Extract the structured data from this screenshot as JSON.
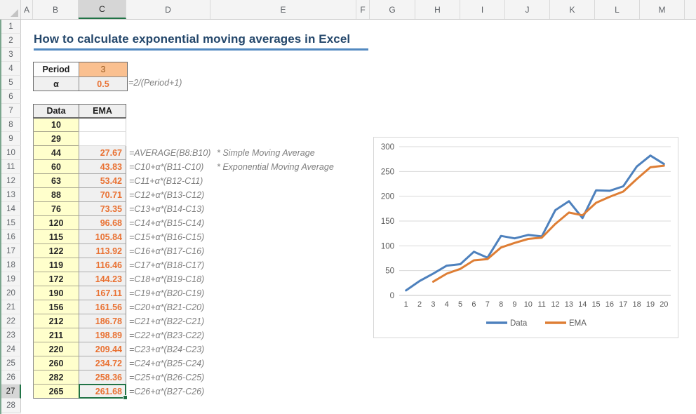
{
  "grid": {
    "column_headers": [
      "A",
      "B",
      "C",
      "D",
      "E",
      "F",
      "G",
      "H",
      "I",
      "J",
      "K",
      "L",
      "M"
    ],
    "row_count": 28,
    "selection": {
      "column": "C",
      "row": 27,
      "cell": "C27"
    }
  },
  "title": "How to calculate exponential moving averages in Excel",
  "params": {
    "period_label": "Period",
    "period_value": "3",
    "alpha_label": "α",
    "alpha_value": "0.5",
    "alpha_formula": "=2/(Period+1)"
  },
  "table": {
    "data_header": "Data",
    "ema_header": "EMA",
    "rows": [
      {
        "data": "10",
        "ema": "",
        "formula": "",
        "note": ""
      },
      {
        "data": "29",
        "ema": "",
        "formula": "",
        "note": ""
      },
      {
        "data": "44",
        "ema": "27.67",
        "formula": "=AVERAGE(B8:B10)",
        "note": "* Simple Moving Average"
      },
      {
        "data": "60",
        "ema": "43.83",
        "formula": "=C10+α*(B11-C10)",
        "note": "* Exponential Moving Average"
      },
      {
        "data": "63",
        "ema": "53.42",
        "formula": "=C11+α*(B12-C11)",
        "note": ""
      },
      {
        "data": "88",
        "ema": "70.71",
        "formula": "=C12+α*(B13-C12)",
        "note": ""
      },
      {
        "data": "76",
        "ema": "73.35",
        "formula": "=C13+α*(B14-C13)",
        "note": ""
      },
      {
        "data": "120",
        "ema": "96.68",
        "formula": "=C14+α*(B15-C14)",
        "note": ""
      },
      {
        "data": "115",
        "ema": "105.84",
        "formula": "=C15+α*(B16-C15)",
        "note": ""
      },
      {
        "data": "122",
        "ema": "113.92",
        "formula": "=C16+α*(B17-C16)",
        "note": ""
      },
      {
        "data": "119",
        "ema": "116.46",
        "formula": "=C17+α*(B18-C17)",
        "note": ""
      },
      {
        "data": "172",
        "ema": "144.23",
        "formula": "=C18+α*(B19-C18)",
        "note": ""
      },
      {
        "data": "190",
        "ema": "167.11",
        "formula": "=C19+α*(B20-C19)",
        "note": ""
      },
      {
        "data": "156",
        "ema": "161.56",
        "formula": "=C20+α*(B21-C20)",
        "note": ""
      },
      {
        "data": "212",
        "ema": "186.78",
        "formula": "=C21+α*(B22-C21)",
        "note": ""
      },
      {
        "data": "211",
        "ema": "198.89",
        "formula": "=C22+α*(B23-C22)",
        "note": ""
      },
      {
        "data": "220",
        "ema": "209.44",
        "formula": "=C23+α*(B24-C23)",
        "note": ""
      },
      {
        "data": "260",
        "ema": "234.72",
        "formula": "=C24+α*(B25-C24)",
        "note": ""
      },
      {
        "data": "282",
        "ema": "258.36",
        "formula": "=C25+α*(B26-C25)",
        "note": ""
      },
      {
        "data": "265",
        "ema": "261.68",
        "formula": "=C26+α*(B27-C26)",
        "note": ""
      }
    ]
  },
  "chart_data": {
    "type": "line",
    "x": [
      1,
      2,
      3,
      4,
      5,
      6,
      7,
      8,
      9,
      10,
      11,
      12,
      13,
      14,
      15,
      16,
      17,
      18,
      19,
      20
    ],
    "series": [
      {
        "name": "Data",
        "color": "#4E81BD",
        "values": [
          10,
          29,
          44,
          60,
          63,
          88,
          76,
          120,
          115,
          122,
          119,
          172,
          190,
          156,
          212,
          211,
          220,
          260,
          282,
          265
        ]
      },
      {
        "name": "EMA",
        "color": "#DE7E35",
        "values": [
          null,
          null,
          27.67,
          43.83,
          53.42,
          70.71,
          73.35,
          96.68,
          105.84,
          113.92,
          116.46,
          144.23,
          167.11,
          161.56,
          186.78,
          198.89,
          209.44,
          234.72,
          258.36,
          261.68
        ]
      }
    ],
    "title": "",
    "xlabel": "",
    "ylabel": "",
    "ylim": [
      0,
      300
    ],
    "ytick_step": 50,
    "grid": true,
    "legend_position": "bottom"
  },
  "colors": {
    "selection_green": "#217346",
    "accent_orange": "#E97132",
    "orange_fill": "#FAC090",
    "yellow_fill": "#FFFFCC",
    "title_navy": "#24476B",
    "underline_blue": "#5289C0",
    "axis_text_gray": "#595959",
    "gridline_gray": "#D9D9D9"
  }
}
